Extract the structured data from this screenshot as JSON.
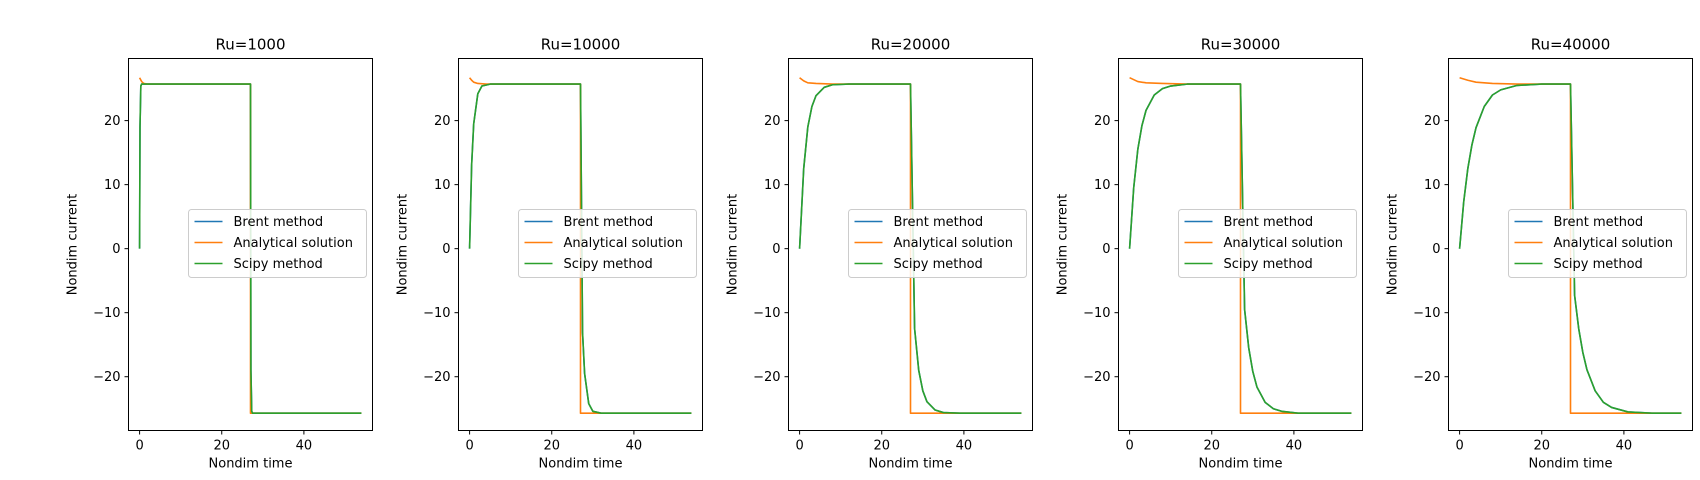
{
  "chart_data": [
    {
      "type": "line",
      "title": "Ru=1000",
      "xlabel": "Nondim time",
      "ylabel": "Nondim current",
      "xlim": [
        -2.7,
        56.7
      ],
      "ylim": [
        -28.4,
        29.7
      ],
      "xticks": [
        0,
        20,
        40
      ],
      "yticks": [
        -20,
        -10,
        0,
        10,
        20
      ],
      "legend": "center-right",
      "grid": false,
      "switch_time": 27.0,
      "end_time": 54.0,
      "steady_current": 25.7,
      "tau": 0.07,
      "series": [
        {
          "name": "Brent method",
          "color": "#1f77b4",
          "points": [
            [
              0,
              0
            ],
            [
              0.1,
              19
            ],
            [
              0.3,
              25.4
            ],
            [
              0.5,
              25.7
            ],
            [
              27.0,
              25.7
            ],
            [
              27.1,
              -19
            ],
            [
              27.3,
              -25.4
            ],
            [
              27.5,
              -25.7
            ],
            [
              54,
              -25.7
            ]
          ]
        },
        {
          "name": "Analytical solution",
          "color": "#ff7f0e",
          "points": [
            [
              0,
              26.7
            ],
            [
              0.5,
              26.1
            ],
            [
              1.0,
              25.8
            ],
            [
              2.0,
              25.7
            ],
            [
              27.0,
              25.7
            ],
            [
              27.0,
              -25.7
            ],
            [
              54,
              -25.7
            ]
          ]
        },
        {
          "name": "Scipy method",
          "color": "#2ca02c",
          "points": [
            [
              0,
              0
            ],
            [
              0.1,
              19
            ],
            [
              0.3,
              25.4
            ],
            [
              0.5,
              25.7
            ],
            [
              27.0,
              25.7
            ],
            [
              27.1,
              -19
            ],
            [
              27.3,
              -25.4
            ],
            [
              27.5,
              -25.7
            ],
            [
              54,
              -25.7
            ]
          ]
        }
      ]
    },
    {
      "type": "line",
      "title": "Ru=10000",
      "xlabel": "Nondim time",
      "ylabel": "Nondim current",
      "xlim": [
        -2.7,
        56.7
      ],
      "ylim": [
        -28.4,
        29.7
      ],
      "xticks": [
        0,
        20,
        40
      ],
      "yticks": [
        -20,
        -10,
        0,
        10,
        20
      ],
      "legend": "center-right",
      "grid": false,
      "switch_time": 27.0,
      "end_time": 54.0,
      "steady_current": 25.7,
      "tau": 0.7,
      "series": [
        {
          "name": "Brent method",
          "color": "#1f77b4",
          "points": [
            [
              0,
              0
            ],
            [
              0.5,
              13.1
            ],
            [
              1,
              19.5
            ],
            [
              2,
              24.2
            ],
            [
              3,
              25.4
            ],
            [
              5,
              25.7
            ],
            [
              27,
              25.7
            ],
            [
              27.5,
              -13.1
            ],
            [
              28,
              -19.5
            ],
            [
              29,
              -24.2
            ],
            [
              30,
              -25.4
            ],
            [
              32,
              -25.7
            ],
            [
              54,
              -25.7
            ]
          ]
        },
        {
          "name": "Analytical solution",
          "color": "#ff7f0e",
          "points": [
            [
              0,
              26.7
            ],
            [
              0.5,
              26.3
            ],
            [
              1,
              26.0
            ],
            [
              2,
              25.8
            ],
            [
              4,
              25.7
            ],
            [
              27,
              25.7
            ],
            [
              27,
              -25.7
            ],
            [
              54,
              -25.7
            ]
          ]
        },
        {
          "name": "Scipy method",
          "color": "#2ca02c",
          "points": [
            [
              0,
              0
            ],
            [
              0.5,
              13.1
            ],
            [
              1,
              19.5
            ],
            [
              2,
              24.2
            ],
            [
              3,
              25.4
            ],
            [
              5,
              25.7
            ],
            [
              27,
              25.7
            ],
            [
              27.5,
              -13.1
            ],
            [
              28,
              -19.5
            ],
            [
              29,
              -24.2
            ],
            [
              30,
              -25.4
            ],
            [
              32,
              -25.7
            ],
            [
              54,
              -25.7
            ]
          ]
        }
      ]
    },
    {
      "type": "line",
      "title": "Ru=20000",
      "xlabel": "Nondim time",
      "ylabel": "Nondim current",
      "xlim": [
        -2.7,
        56.7
      ],
      "ylim": [
        -28.4,
        29.7
      ],
      "xticks": [
        0,
        20,
        40
      ],
      "yticks": [
        -20,
        -10,
        0,
        10,
        20
      ],
      "legend": "center-right",
      "grid": false,
      "switch_time": 27.0,
      "end_time": 54.0,
      "steady_current": 25.7,
      "tau": 1.5,
      "series": [
        {
          "name": "Brent method",
          "color": "#1f77b4",
          "points": [
            [
              0,
              0
            ],
            [
              1,
              12.5
            ],
            [
              2,
              19.0
            ],
            [
              3,
              22.2
            ],
            [
              4,
              23.9
            ],
            [
              6,
              25.2
            ],
            [
              8,
              25.6
            ],
            [
              12,
              25.7
            ],
            [
              27,
              25.7
            ],
            [
              28,
              -12.5
            ],
            [
              29,
              -19.0
            ],
            [
              30,
              -22.2
            ],
            [
              31,
              -23.9
            ],
            [
              33,
              -25.2
            ],
            [
              35,
              -25.6
            ],
            [
              39,
              -25.7
            ],
            [
              54,
              -25.7
            ]
          ]
        },
        {
          "name": "Analytical solution",
          "color": "#ff7f0e",
          "points": [
            [
              0,
              26.7
            ],
            [
              1,
              26.2
            ],
            [
              2,
              25.9
            ],
            [
              4,
              25.8
            ],
            [
              8,
              25.7
            ],
            [
              27,
              25.7
            ],
            [
              27,
              -25.7
            ],
            [
              54,
              -25.7
            ]
          ]
        },
        {
          "name": "Scipy method",
          "color": "#2ca02c",
          "points": [
            [
              0,
              0
            ],
            [
              1,
              12.5
            ],
            [
              2,
              19.0
            ],
            [
              3,
              22.2
            ],
            [
              4,
              23.9
            ],
            [
              6,
              25.2
            ],
            [
              8,
              25.6
            ],
            [
              12,
              25.7
            ],
            [
              27,
              25.7
            ],
            [
              28,
              -12.5
            ],
            [
              29,
              -19.0
            ],
            [
              30,
              -22.2
            ],
            [
              31,
              -23.9
            ],
            [
              33,
              -25.2
            ],
            [
              35,
              -25.6
            ],
            [
              39,
              -25.7
            ],
            [
              54,
              -25.7
            ]
          ]
        }
      ]
    },
    {
      "type": "line",
      "title": "Ru=30000",
      "xlabel": "Nondim time",
      "ylabel": "Nondim current",
      "xlim": [
        -2.7,
        56.7
      ],
      "ylim": [
        -28.4,
        29.7
      ],
      "xticks": [
        0,
        20,
        40
      ],
      "yticks": [
        -20,
        -10,
        0,
        10,
        20
      ],
      "legend": "center-right",
      "grid": false,
      "switch_time": 27.0,
      "end_time": 54.0,
      "steady_current": 25.7,
      "tau": 2.2,
      "series": [
        {
          "name": "Brent method",
          "color": "#1f77b4",
          "points": [
            [
              0,
              0
            ],
            [
              1,
              9.5
            ],
            [
              2,
              15.5
            ],
            [
              3,
              19.2
            ],
            [
              4,
              21.6
            ],
            [
              6,
              24.0
            ],
            [
              8,
              25.0
            ],
            [
              10,
              25.4
            ],
            [
              14,
              25.7
            ],
            [
              27,
              25.7
            ],
            [
              28,
              -9.5
            ],
            [
              29,
              -15.5
            ],
            [
              30,
              -19.2
            ],
            [
              31,
              -21.6
            ],
            [
              33,
              -24.0
            ],
            [
              35,
              -25.0
            ],
            [
              37,
              -25.4
            ],
            [
              41,
              -25.7
            ],
            [
              54,
              -25.7
            ]
          ]
        },
        {
          "name": "Analytical solution",
          "color": "#ff7f0e",
          "points": [
            [
              0,
              26.7
            ],
            [
              2,
              26.1
            ],
            [
              4,
              25.9
            ],
            [
              8,
              25.8
            ],
            [
              14,
              25.7
            ],
            [
              27,
              25.7
            ],
            [
              27,
              -25.7
            ],
            [
              54,
              -25.7
            ]
          ]
        },
        {
          "name": "Scipy method",
          "color": "#2ca02c",
          "points": [
            [
              0,
              0
            ],
            [
              1,
              9.5
            ],
            [
              2,
              15.5
            ],
            [
              3,
              19.2
            ],
            [
              4,
              21.6
            ],
            [
              6,
              24.0
            ],
            [
              8,
              25.0
            ],
            [
              10,
              25.4
            ],
            [
              14,
              25.7
            ],
            [
              27,
              25.7
            ],
            [
              28,
              -9.5
            ],
            [
              29,
              -15.5
            ],
            [
              30,
              -19.2
            ],
            [
              31,
              -21.6
            ],
            [
              33,
              -24.0
            ],
            [
              35,
              -25.0
            ],
            [
              37,
              -25.4
            ],
            [
              41,
              -25.7
            ],
            [
              54,
              -25.7
            ]
          ]
        }
      ]
    },
    {
      "type": "line",
      "title": "Ru=40000",
      "xlabel": "Nondim time",
      "ylabel": "Nondim current",
      "xlim": [
        -2.7,
        56.7
      ],
      "ylim": [
        -28.4,
        29.7
      ],
      "xticks": [
        0,
        20,
        40
      ],
      "yticks": [
        -20,
        -10,
        0,
        10,
        20
      ],
      "legend": "center-right",
      "grid": false,
      "switch_time": 27.0,
      "end_time": 54.0,
      "steady_current": 25.7,
      "tau": 3.0,
      "series": [
        {
          "name": "Brent method",
          "color": "#1f77b4",
          "points": [
            [
              0,
              0
            ],
            [
              1,
              7.3
            ],
            [
              2,
              12.5
            ],
            [
              3,
              16.2
            ],
            [
              4,
              18.9
            ],
            [
              6,
              22.2
            ],
            [
              8,
              24.0
            ],
            [
              10,
              24.8
            ],
            [
              14,
              25.5
            ],
            [
              20,
              25.7
            ],
            [
              27,
              25.7
            ],
            [
              28,
              -7.3
            ],
            [
              29,
              -12.5
            ],
            [
              30,
              -16.2
            ],
            [
              31,
              -18.9
            ],
            [
              33,
              -22.2
            ],
            [
              35,
              -24.0
            ],
            [
              37,
              -24.8
            ],
            [
              41,
              -25.5
            ],
            [
              47,
              -25.7
            ],
            [
              54,
              -25.7
            ]
          ]
        },
        {
          "name": "Analytical solution",
          "color": "#ff7f0e",
          "points": [
            [
              0,
              26.7
            ],
            [
              2,
              26.3
            ],
            [
              4,
              26.0
            ],
            [
              8,
              25.8
            ],
            [
              14,
              25.7
            ],
            [
              27,
              25.7
            ],
            [
              27,
              -25.7
            ],
            [
              54,
              -25.7
            ]
          ]
        },
        {
          "name": "Scipy method",
          "color": "#2ca02c",
          "points": [
            [
              0,
              0
            ],
            [
              1,
              7.3
            ],
            [
              2,
              12.5
            ],
            [
              3,
              16.2
            ],
            [
              4,
              18.9
            ],
            [
              6,
              22.2
            ],
            [
              8,
              24.0
            ],
            [
              10,
              24.8
            ],
            [
              14,
              25.5
            ],
            [
              20,
              25.7
            ],
            [
              27,
              25.7
            ],
            [
              28,
              -7.3
            ],
            [
              29,
              -12.5
            ],
            [
              30,
              -16.2
            ],
            [
              31,
              -18.9
            ],
            [
              33,
              -22.2
            ],
            [
              35,
              -24.0
            ],
            [
              37,
              -24.8
            ],
            [
              41,
              -25.5
            ],
            [
              47,
              -25.7
            ],
            [
              54,
              -25.7
            ]
          ]
        }
      ]
    }
  ]
}
